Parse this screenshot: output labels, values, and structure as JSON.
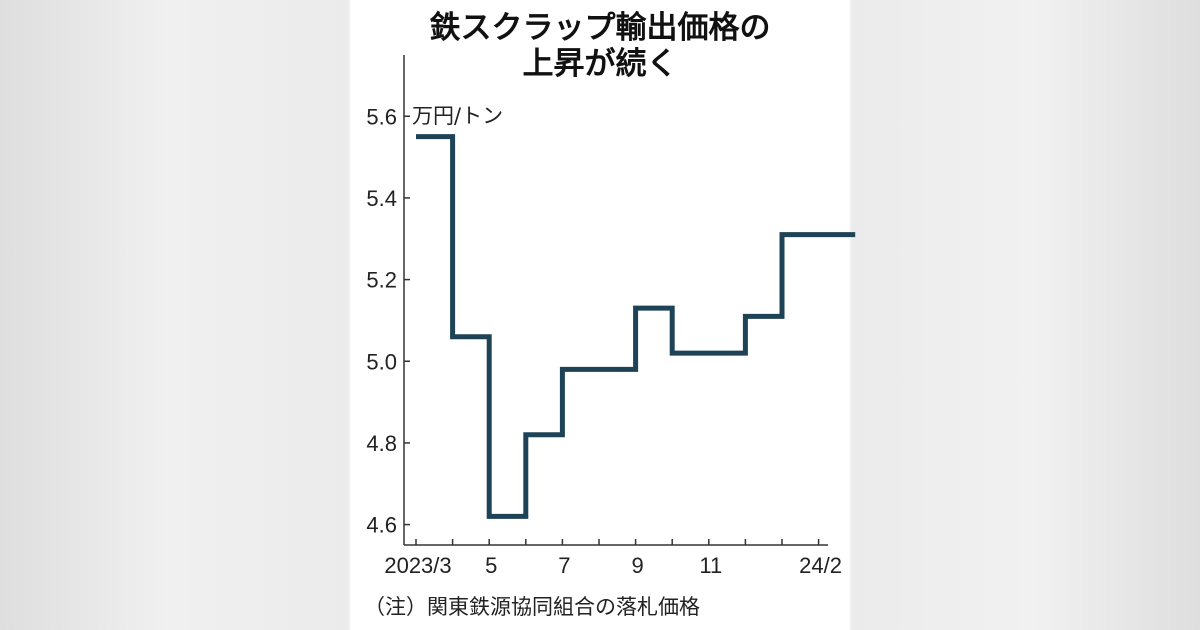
{
  "chart_data": {
    "type": "line",
    "step": true,
    "title_line1": "鉄スクラップ輸出価格の",
    "title_line2": "上昇が続く",
    "ylabel": "万円/トン",
    "note": "（注）関東鉄源協同組合の落札価格",
    "ylim": [
      4.55,
      5.75
    ],
    "yticks": [
      4.6,
      4.8,
      5.0,
      5.2,
      5.4,
      5.6
    ],
    "ytick_labels": [
      "4.6",
      "4.8",
      "5.0",
      "5.2",
      "5.4",
      "5.6"
    ],
    "x": [
      "2023/3",
      "2023/4",
      "2023/5",
      "2023/6",
      "2023/7",
      "2023/8",
      "2023/9",
      "2023/10",
      "2023/11",
      "2023/12",
      "2024/1",
      "2024/2"
    ],
    "xtick_labels": [
      "2023/3",
      "",
      "5",
      "",
      "7",
      "",
      "9",
      "",
      "11",
      "",
      "",
      "24/2"
    ],
    "series": [
      {
        "color": "#1e4357",
        "values": [
          5.55,
          5.06,
          4.62,
          4.82,
          4.98,
          4.98,
          5.13,
          5.02,
          5.02,
          5.11,
          5.31,
          5.31
        ]
      }
    ],
    "grid": false
  }
}
